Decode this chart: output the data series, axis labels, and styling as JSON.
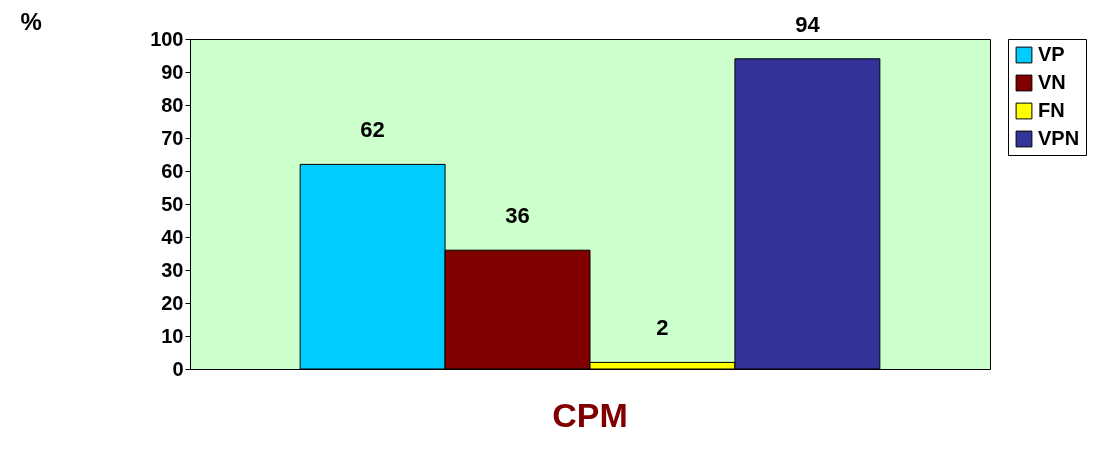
{
  "chart_data": {
    "type": "bar",
    "xlabel": null,
    "ylabel": "%",
    "categories": [
      "CPM"
    ],
    "series": [
      {
        "name": "VP",
        "color": "#00ccff",
        "values": [
          62
        ]
      },
      {
        "name": "VN",
        "color": "#800000",
        "values": [
          36
        ]
      },
      {
        "name": "FN",
        "color": "#ffff00",
        "values": [
          2
        ]
      },
      {
        "name": "VPN",
        "color": "#333399",
        "values": [
          94
        ]
      }
    ],
    "ylim": [
      0,
      100
    ],
    "yticks": [
      0,
      10,
      20,
      30,
      40,
      50,
      60,
      70,
      80,
      90,
      100
    ],
    "grid": false,
    "legend": "right",
    "data_labels": true
  }
}
